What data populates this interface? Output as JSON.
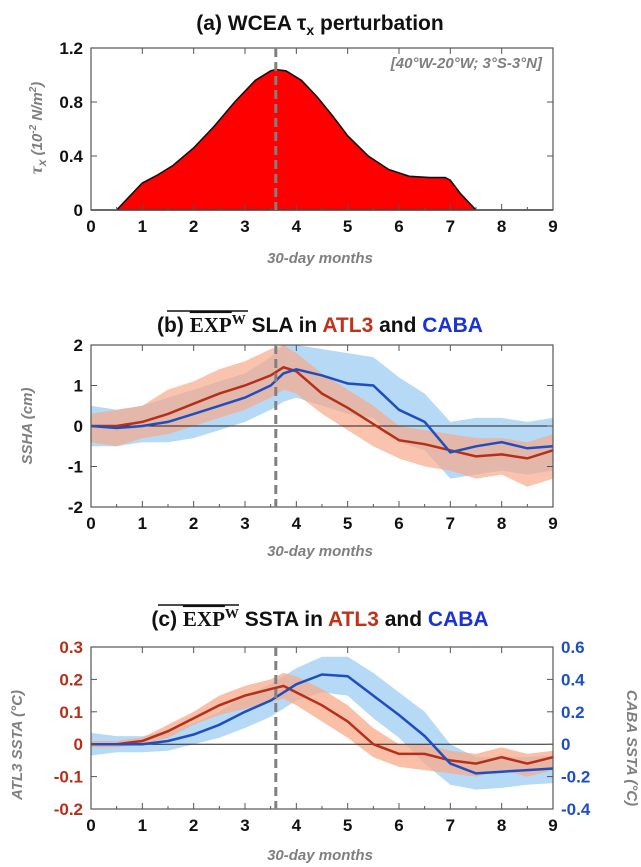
{
  "colors": {
    "atl3": "#b5301a",
    "atl3_band": "#f7a98a",
    "caba": "#1f4fbf",
    "caba_band": "#a9d2f5",
    "tau_fill": "#ff0000",
    "title_red": "#c0321a",
    "title_blue": "#1a33d6",
    "ref_line": "#808080"
  },
  "panel_a": {
    "title": "(a) WCEA τ",
    "title_sub": "x",
    "title_rest": " perturbation",
    "annotation": "[40°W-20°W; 3°S-3°N]",
    "ylabel_sym": "τ",
    "ylabel_sub": "x",
    "ylabel_units": " (10",
    "ylabel_exp": "-2",
    "ylabel_units2": " N/m",
    "ylabel_exp2": "2",
    "ylabel_close": ")",
    "xlabel": "30-day months",
    "xticks": [
      "0",
      "1",
      "2",
      "3",
      "4",
      "5",
      "6",
      "7",
      "8",
      "9"
    ],
    "yticks": [
      "0",
      "0.4",
      "0.8",
      "1.2"
    ]
  },
  "panel_b": {
    "title_prefix": "(b) ",
    "title_exp": "EXP",
    "title_sup": "W",
    "title_mid": " SLA in ",
    "title_atl": "ATL3",
    "title_and": " and ",
    "title_caba": "CABA",
    "ylabel": "SSHA (cm)",
    "xlabel": "30-day months",
    "xticks": [
      "0",
      "1",
      "2",
      "3",
      "4",
      "5",
      "6",
      "7",
      "8",
      "9"
    ],
    "yticks": [
      "-2",
      "-1",
      "0",
      "1",
      "2"
    ]
  },
  "panel_c": {
    "title_prefix": "(c) ",
    "title_exp": "EXP",
    "title_sup": "W",
    "title_mid": " SSTA in ",
    "title_atl": "ATL3",
    "title_and": " and ",
    "title_caba": "CABA",
    "ylabel_left": "ATL3 SSTA (°C)",
    "ylabel_right": "CABA SSTA (°C)",
    "xlabel": "30-day months",
    "xticks": [
      "0",
      "1",
      "2",
      "3",
      "4",
      "5",
      "6",
      "7",
      "8",
      "9"
    ],
    "yticks_left": [
      "-0.2",
      "-0.1",
      "0",
      "0.1",
      "0.2",
      "0.3"
    ],
    "yticks_right": [
      "-0.4",
      "-0.2",
      "0",
      "0.2",
      "0.4",
      "0.6"
    ]
  },
  "chart_data": [
    {
      "type": "area",
      "title": "(a) WCEA τx perturbation",
      "xlabel": "30-day months",
      "ylabel": "τx (10-2 N/m2)",
      "xlim": [
        0,
        9
      ],
      "ylim": [
        0,
        1.2
      ],
      "reference_line_x": 3.6,
      "series": [
        {
          "x": [
            0,
            0.5,
            0.7,
            1.0,
            1.3,
            1.6,
            2.0,
            2.4,
            2.8,
            3.2,
            3.5,
            3.6,
            3.8,
            4.1,
            4.4,
            4.7,
            5.0,
            5.4,
            5.8,
            6.2,
            6.6,
            6.9,
            7.0,
            7.2,
            7.5,
            9.0
          ],
          "values": [
            0,
            0,
            0.08,
            0.2,
            0.26,
            0.33,
            0.46,
            0.62,
            0.8,
            0.96,
            1.03,
            1.04,
            1.03,
            0.96,
            0.84,
            0.7,
            0.55,
            0.4,
            0.3,
            0.25,
            0.24,
            0.24,
            0.22,
            0.12,
            0,
            0
          ]
        }
      ]
    },
    {
      "type": "line",
      "title": "(b) EXPW SLA in ATL3 and CABA",
      "xlabel": "30-day months",
      "ylabel": "SSHA (cm)",
      "xlim": [
        0,
        9
      ],
      "ylim": [
        -2,
        2
      ],
      "reference_line_x": 3.6,
      "x": [
        0,
        0.5,
        1,
        1.5,
        2,
        2.5,
        3,
        3.5,
        3.75,
        4,
        4.5,
        5,
        5.5,
        6,
        6.5,
        7,
        7.5,
        8,
        8.5,
        9
      ],
      "series": [
        {
          "name": "ATL3",
          "values": [
            0,
            0,
            0.1,
            0.3,
            0.55,
            0.8,
            1.0,
            1.25,
            1.45,
            1.35,
            0.8,
            0.45,
            0.05,
            -0.35,
            -0.45,
            -0.6,
            -0.75,
            -0.7,
            -0.8,
            -0.6
          ],
          "upper": [
            0.3,
            0.4,
            0.5,
            0.9,
            1.1,
            1.4,
            1.6,
            1.9,
            2.0,
            1.8,
            1.3,
            0.9,
            0.5,
            0.0,
            -0.1,
            -0.2,
            -0.3,
            -0.3,
            -0.4,
            -0.2
          ],
          "lower": [
            -0.4,
            -0.5,
            -0.3,
            -0.2,
            0.0,
            0.2,
            0.4,
            0.7,
            0.9,
            0.8,
            0.3,
            -0.1,
            -0.5,
            -0.8,
            -1.0,
            -1.1,
            -1.3,
            -1.2,
            -1.5,
            -1.3
          ]
        },
        {
          "name": "CABA",
          "values": [
            0,
            -0.05,
            0,
            0.1,
            0.3,
            0.5,
            0.7,
            1.0,
            1.3,
            1.4,
            1.25,
            1.05,
            1.0,
            0.4,
            0.1,
            -0.65,
            -0.5,
            -0.4,
            -0.55,
            -0.5
          ],
          "upper": [
            0.5,
            0.4,
            0.5,
            0.7,
            0.9,
            1.1,
            1.3,
            1.7,
            2.0,
            2.0,
            1.9,
            1.8,
            1.7,
            1.2,
            0.8,
            0.1,
            0.2,
            0.2,
            0.1,
            0.2
          ],
          "lower": [
            -0.5,
            -0.5,
            -0.4,
            -0.4,
            -0.3,
            -0.1,
            0.1,
            0.4,
            0.6,
            0.7,
            0.5,
            0.3,
            0.2,
            -0.4,
            -0.6,
            -1.3,
            -1.2,
            -1.1,
            -1.2,
            -1.1
          ]
        }
      ]
    },
    {
      "type": "line",
      "title": "(c) EXPW SSTA in ATL3 and CABA",
      "xlabel": "30-day months",
      "ylabel_left": "ATL3 SSTA (°C)",
      "ylabel_right": "CABA SSTA (°C)",
      "xlim": [
        0,
        9
      ],
      "ylim_left": [
        -0.2,
        0.3
      ],
      "ylim_right": [
        -0.4,
        0.6
      ],
      "reference_line_x": 3.6,
      "x": [
        0,
        0.5,
        1,
        1.5,
        2,
        2.5,
        3,
        3.5,
        3.75,
        4,
        4.5,
        5,
        5.5,
        6,
        6.5,
        7,
        7.5,
        8,
        8.5,
        9
      ],
      "series": [
        {
          "name": "ATL3",
          "axis": "left",
          "values": [
            0,
            0,
            0.01,
            0.04,
            0.08,
            0.12,
            0.15,
            0.17,
            0.18,
            0.16,
            0.12,
            0.07,
            0.0,
            -0.03,
            -0.03,
            -0.05,
            -0.06,
            -0.04,
            -0.06,
            -0.04
          ],
          "upper": [
            0.01,
            0.01,
            0.02,
            0.06,
            0.1,
            0.15,
            0.18,
            0.2,
            0.22,
            0.21,
            0.17,
            0.12,
            0.05,
            0.0,
            0.0,
            -0.02,
            -0.03,
            -0.01,
            -0.03,
            -0.02
          ],
          "lower": [
            -0.01,
            -0.01,
            0.0,
            0.02,
            0.06,
            0.09,
            0.11,
            0.13,
            0.14,
            0.12,
            0.07,
            0.02,
            -0.04,
            -0.07,
            -0.08,
            -0.09,
            -0.1,
            -0.08,
            -0.1,
            -0.08
          ]
        },
        {
          "name": "CABA",
          "axis": "right",
          "values": [
            0,
            0,
            0,
            0.02,
            0.06,
            0.12,
            0.2,
            0.27,
            0.32,
            0.37,
            0.43,
            0.42,
            0.3,
            0.18,
            0.05,
            -0.12,
            -0.18,
            -0.17,
            -0.16,
            -0.15
          ],
          "upper": [
            0.07,
            0.05,
            0.05,
            0.08,
            0.13,
            0.2,
            0.3,
            0.37,
            0.42,
            0.47,
            0.54,
            0.54,
            0.44,
            0.32,
            0.2,
            0.0,
            -0.08,
            -0.08,
            -0.08,
            -0.07
          ],
          "lower": [
            -0.07,
            -0.05,
            -0.05,
            -0.04,
            0.0,
            0.04,
            0.1,
            0.17,
            0.22,
            0.27,
            0.32,
            0.3,
            0.16,
            0.04,
            -0.12,
            -0.25,
            -0.28,
            -0.27,
            -0.25,
            -0.24
          ]
        }
      ]
    }
  ]
}
